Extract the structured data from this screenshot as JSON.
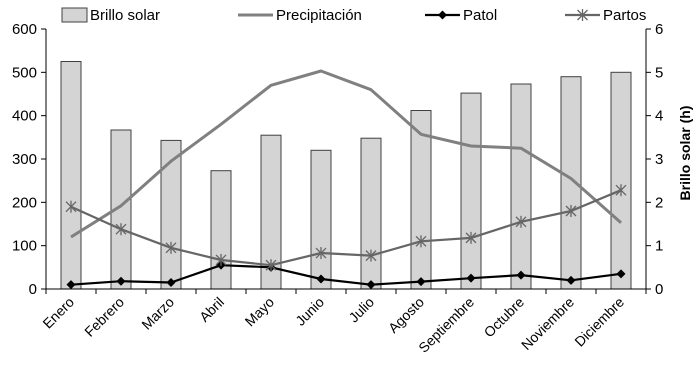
{
  "chart_data": {
    "type": "bar",
    "categories": [
      "Enero",
      "Febrero",
      "Marzo",
      "Abril",
      "Mayo",
      "Junio",
      "Julio",
      "Agosto",
      "Septiembre",
      "Octubre",
      "Noviembre",
      "Diciembre"
    ],
    "y_left": {
      "label": "",
      "range": [
        0,
        600
      ],
      "ticks": [
        "0",
        "100",
        "200",
        "300",
        "400",
        "500",
        "600"
      ]
    },
    "y_right": {
      "label": "Brillo solar (h)",
      "range": [
        0,
        6
      ],
      "ticks": [
        "0",
        "1",
        "2",
        "3",
        "4",
        "5",
        "6"
      ]
    },
    "grid": false,
    "legend_position": "top",
    "series": [
      {
        "name": "Brillo solar",
        "kind": "bar",
        "axis": "right",
        "color": "#d4d4d4",
        "stroke": "#404040",
        "values": [
          5.25,
          3.67,
          3.43,
          2.73,
          3.55,
          3.2,
          3.48,
          4.12,
          4.52,
          4.73,
          4.9,
          5.0
        ]
      },
      {
        "name": "Precipitación",
        "kind": "line",
        "axis": "left",
        "color": "#808080",
        "marker": "none",
        "values": [
          120,
          192,
          295,
          380,
          470,
          503,
          460,
          357,
          330,
          325,
          255,
          153
        ]
      },
      {
        "name": "Patol",
        "kind": "line",
        "axis": "left",
        "color": "#000000",
        "marker": "diamond",
        "values": [
          10,
          18,
          15,
          55,
          50,
          23,
          10,
          17,
          25,
          32,
          20,
          35
        ]
      },
      {
        "name": "Partos",
        "kind": "line",
        "axis": "left",
        "color": "#666666",
        "marker": "asterisk",
        "values": [
          190,
          138,
          95,
          67,
          55,
          83,
          77,
          110,
          118,
          155,
          180,
          228
        ]
      }
    ]
  }
}
